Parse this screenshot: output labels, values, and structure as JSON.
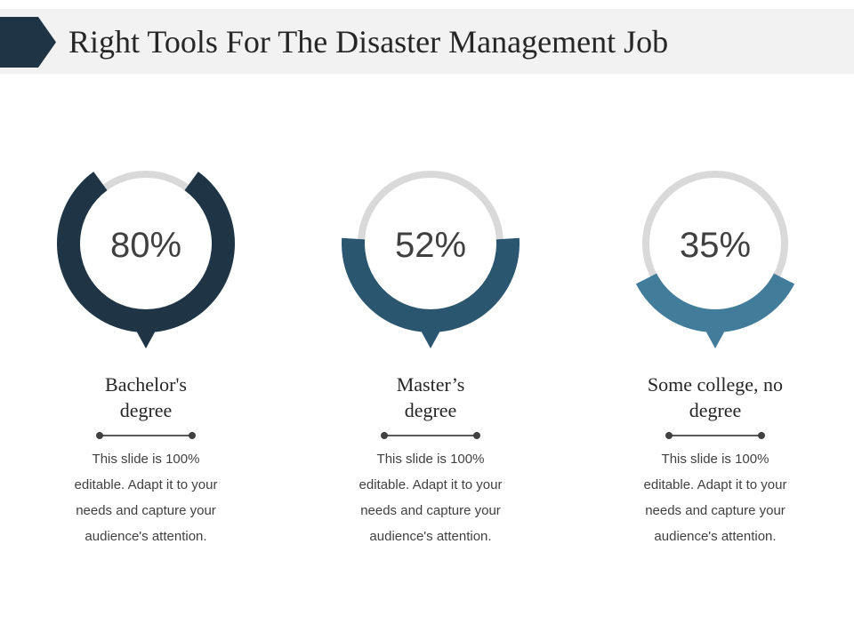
{
  "header": {
    "title": "Right Tools For The Disaster Management Job"
  },
  "chart_data": {
    "type": "pie",
    "title": "",
    "categories": [
      "Bachelor's degree",
      "Master’s degree",
      "Some college, no degree"
    ],
    "values": [
      80,
      52,
      35
    ],
    "unit": "%",
    "track_color": "#d9d9d9",
    "colors": [
      "#1f3545",
      "#2b5670",
      "#427c9b"
    ]
  },
  "cards": [
    {
      "percent_label": "80%",
      "label_lines": [
        "Bachelor's",
        "degree"
      ],
      "description_lines": [
        "This slide is 100%",
        "editable. Adapt it to your",
        "needs and capture your",
        "audience's attention."
      ]
    },
    {
      "percent_label": "52%",
      "label_lines": [
        "Master’s",
        "degree"
      ],
      "description_lines": [
        "This slide is 100%",
        "editable. Adapt it to your",
        "needs and capture your",
        "audience's attention."
      ]
    },
    {
      "percent_label": "35%",
      "label_lines": [
        "Some college, no",
        "degree"
      ],
      "description_lines": [
        "This slide is 100%",
        "editable. Adapt it to your",
        "needs and capture your",
        "audience's attention."
      ]
    }
  ]
}
